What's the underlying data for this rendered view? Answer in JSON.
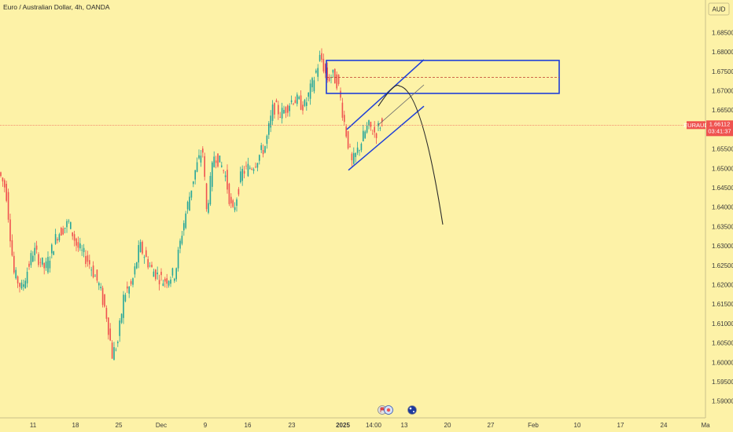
{
  "header": {
    "title": "Euro / Australian Dollar, 4h, OANDA"
  },
  "currency_button": "AUD",
  "symbol_tag": "EURAUD",
  "price_tag": {
    "price": "1.66112",
    "countdown": "03:41:37"
  },
  "colors": {
    "background": "#fdf2a7",
    "up": "#26a69a",
    "down": "#ef5350",
    "drawing": "#1e3fd8",
    "price_line": "#ef5350"
  },
  "icons": [
    "flag-icon",
    "calendar-event-icon",
    "australia-flag-icon"
  ],
  "chart_data": {
    "type": "candlestick",
    "title": "Euro / Australian Dollar, 4h, OANDA",
    "ylim": [
      1.5875,
      1.6875
    ],
    "y_ticks": [
      "1.68500",
      "1.68000",
      "1.67500",
      "1.67000",
      "1.66500",
      "1.66000",
      "1.65500",
      "1.65000",
      "1.64500",
      "1.64000",
      "1.63500",
      "1.63000",
      "1.62500",
      "1.62000",
      "1.61500",
      "1.61000",
      "1.60500",
      "1.60000",
      "1.59500",
      "1.59000"
    ],
    "x_ticks": [
      "11",
      "18",
      "25",
      "Dec",
      "9",
      "16",
      "23",
      "2025",
      "14:00",
      "13",
      "20",
      "27",
      "Feb",
      "10",
      "17",
      "24",
      "Ma"
    ],
    "x_tick_index": [
      42,
      96,
      151,
      205,
      261,
      315,
      371,
      436,
      475,
      514,
      569,
      624,
      678,
      734,
      789,
      844,
      897
    ],
    "last_price": 1.66112,
    "anchors": [
      [
        0,
        1.6495
      ],
      [
        10,
        1.6445
      ],
      [
        20,
        1.623
      ],
      [
        30,
        1.619
      ],
      [
        45,
        1.629
      ],
      [
        60,
        1.624
      ],
      [
        75,
        1.633
      ],
      [
        90,
        1.636
      ],
      [
        100,
        1.63
      ],
      [
        115,
        1.626
      ],
      [
        128,
        1.62
      ],
      [
        138,
        1.612
      ],
      [
        145,
        1.602
      ],
      [
        152,
        1.605
      ],
      [
        160,
        1.6175
      ],
      [
        170,
        1.62
      ],
      [
        180,
        1.63
      ],
      [
        195,
        1.624
      ],
      [
        210,
        1.621
      ],
      [
        225,
        1.623
      ],
      [
        235,
        1.635
      ],
      [
        250,
        1.649
      ],
      [
        260,
        1.655
      ],
      [
        265,
        1.639
      ],
      [
        275,
        1.654
      ],
      [
        288,
        1.649
      ],
      [
        298,
        1.638
      ],
      [
        310,
        1.649
      ],
      [
        325,
        1.651
      ],
      [
        340,
        1.656
      ],
      [
        350,
        1.666
      ],
      [
        360,
        1.664
      ],
      [
        375,
        1.668
      ],
      [
        390,
        1.666
      ],
      [
        400,
        1.672
      ],
      [
        410,
        1.679
      ],
      [
        418,
        1.673
      ],
      [
        425,
        1.674
      ],
      [
        432,
        1.672
      ],
      [
        440,
        1.662
      ],
      [
        450,
        1.651
      ],
      [
        460,
        1.656
      ],
      [
        470,
        1.661
      ],
      [
        480,
        1.659
      ],
      [
        486,
        1.6615
      ]
    ],
    "zone": {
      "x_start": 415,
      "x_end": 711,
      "top": 1.6778,
      "bottom": 1.6693,
      "mid": 1.6734
    },
    "channel": {
      "upper": [
        [
          441,
          1.66
        ],
        [
          539,
          1.678
        ]
      ],
      "lower": [
        [
          443,
          1.6495
        ],
        [
          539,
          1.666
        ]
      ],
      "middle": [
        [
          480,
          1.661
        ],
        [
          539,
          1.6715
        ]
      ]
    },
    "projection": {
      "start": [
        481,
        1.666
      ],
      "apex": [
        508,
        1.6712
      ],
      "end": [
        563,
        1.6355
      ]
    }
  }
}
